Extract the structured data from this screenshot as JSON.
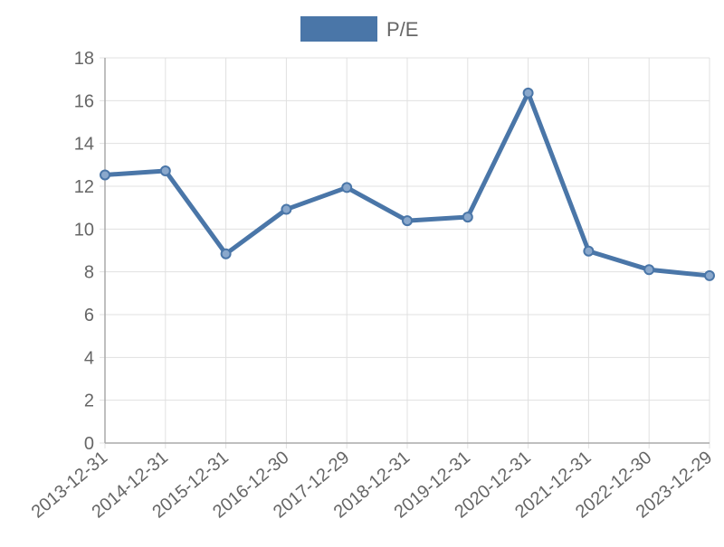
{
  "chart_data": {
    "type": "line",
    "title": "",
    "xlabel": "",
    "ylabel": "",
    "categories": [
      "2013-12-31",
      "2014-12-31",
      "2015-12-31",
      "2016-12-30",
      "2017-12-29",
      "2018-12-31",
      "2019-12-31",
      "2020-12-31",
      "2021-12-31",
      "2022-12-30",
      "2023-12-29"
    ],
    "series": [
      {
        "name": "P/E",
        "values": [
          12.53,
          12.72,
          8.84,
          10.92,
          11.94,
          10.39,
          10.56,
          16.36,
          8.97,
          8.1,
          7.82
        ],
        "color": "#4a76a8"
      }
    ],
    "ylim": [
      0,
      18
    ],
    "yticks": [
      "0",
      "2",
      "4",
      "6",
      "8",
      "10",
      "12",
      "14",
      "16",
      "18"
    ],
    "grid": true,
    "legend": "top-center"
  }
}
